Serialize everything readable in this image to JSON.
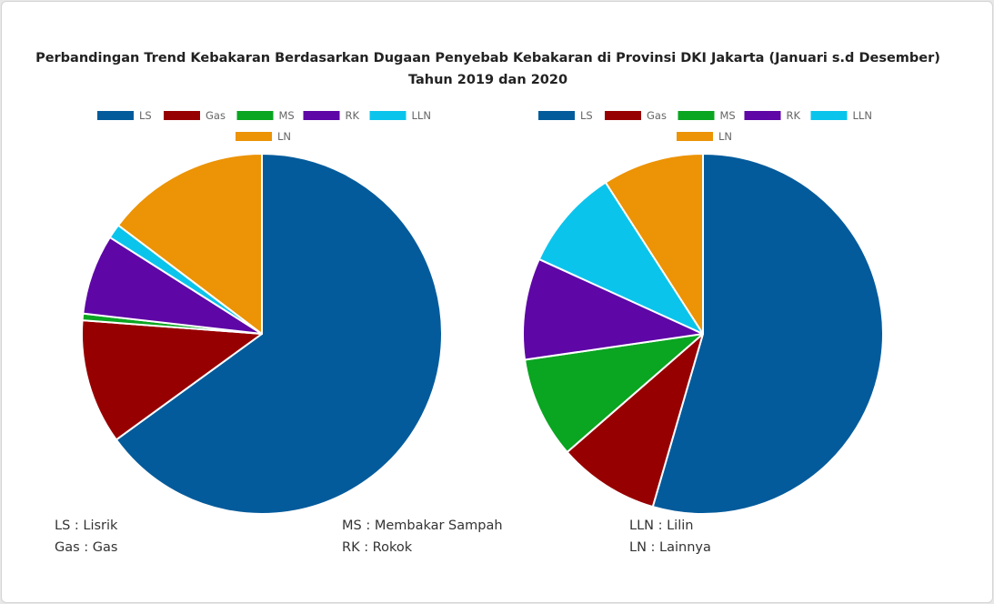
{
  "title_line1": "Perbandingan Trend Kebakaran Berdasarkan Dugaan Penyebab Kebakaran di Provinsi DKI Jakarta (Januari s.d Desember)",
  "title_line2": "Tahun 2019 dan 2020",
  "legend_labels": [
    "LS",
    "Gas",
    "MS",
    "RK",
    "LLN",
    "LN"
  ],
  "colors": {
    "LS": "#045b9b",
    "Gas": "#970000",
    "MS": "#0aa521",
    "RK": "#5e06a6",
    "LLN": "#0bc4ec",
    "LN": "#ec9306"
  },
  "chart_data": [
    {
      "type": "pie",
      "title": "",
      "labels": [
        "LS",
        "Gas",
        "MS",
        "RK",
        "LLN",
        "LN"
      ],
      "values": [
        65.0,
        11.2,
        0.6,
        7.2,
        1.3,
        14.7
      ],
      "legend_position": "top"
    },
    {
      "type": "pie",
      "title": "",
      "labels": [
        "LS",
        "Gas",
        "MS",
        "RK",
        "LLN",
        "LN"
      ],
      "values": [
        54.5,
        9.1,
        9.1,
        9.1,
        9.1,
        9.1
      ],
      "legend_position": "top"
    }
  ],
  "notes": {
    "ls": "LS : Lisrik",
    "gas": "Gas : Gas",
    "ms": "MS : Membakar Sampah",
    "rk": "RK : Rokok",
    "lln": "LLN : Lilin",
    "ln": "LN : Lainnya"
  }
}
